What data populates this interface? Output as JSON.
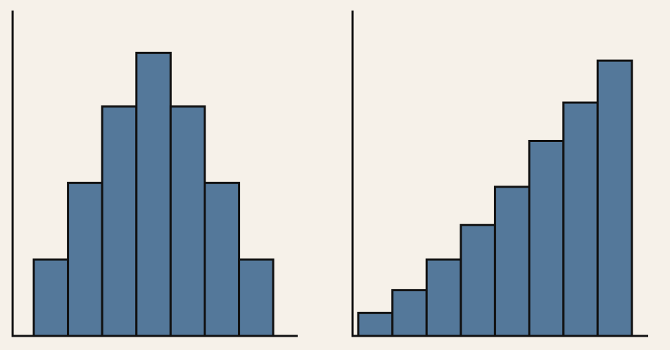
{
  "colors": {
    "background": "#f6f1e9",
    "bar_fill": "#54789a",
    "bar_stroke": "#111111",
    "axis": "#111111"
  },
  "chart_data": [
    {
      "type": "bar",
      "categories": [
        "",
        "",
        "",
        "",
        "",
        "",
        ""
      ],
      "values": [
        1.0,
        2.0,
        3.0,
        3.7,
        3.0,
        2.0,
        1.0
      ],
      "title": "",
      "xlabel": "",
      "ylabel": "",
      "ylim": [
        0,
        4.3
      ],
      "grid": false,
      "bar_gap": 0
    },
    {
      "type": "bar",
      "categories": [
        "",
        "",
        "",
        "",
        "",
        "",
        "",
        ""
      ],
      "values": [
        0.3,
        0.6,
        1.0,
        1.45,
        1.95,
        2.55,
        3.05,
        3.6
      ],
      "title": "",
      "xlabel": "",
      "ylabel": "",
      "ylim": [
        0,
        4.3
      ],
      "grid": false,
      "bar_gap": 0
    }
  ]
}
